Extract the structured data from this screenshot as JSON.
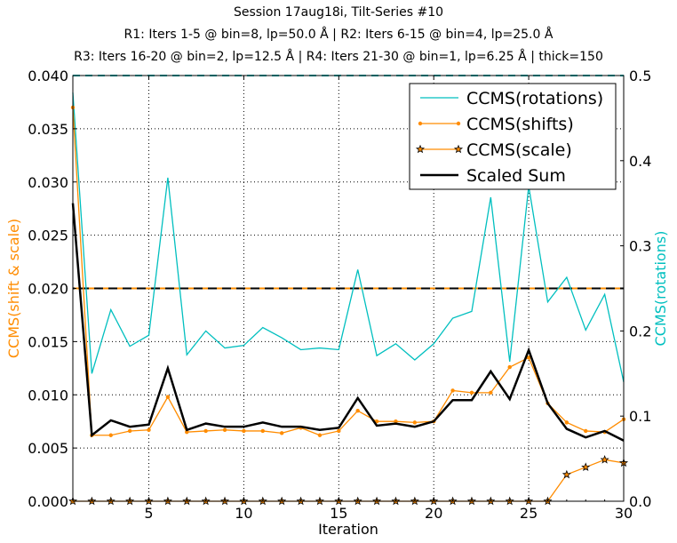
{
  "chart_data": {
    "type": "line",
    "title_lines": [
      "Session 17aug18i, Tilt-Series #10",
      "R1: Iters 1-5 @ bin=8, lp=50.0 Å | R2: Iters 6-15 @ bin=4, lp=25.0 Å",
      "R3: Iters 16-20 @ bin=2, lp=12.5 Å | R4: Iters 21-30 @ bin=1, lp=6.25 Å | thick=150"
    ],
    "xlabel": "Iteration",
    "ylabel_left": "CCMS(shift & scale)",
    "ylabel_right": "CCMS(rotations)",
    "xlim": [
      1,
      30
    ],
    "ylim_left": [
      0,
      0.04
    ],
    "ylim_right": [
      0,
      0.5
    ],
    "x_ticks": [
      "5",
      "10",
      "15",
      "20",
      "25",
      "30"
    ],
    "y_ticks_left": [
      "0.000",
      "0.005",
      "0.010",
      "0.015",
      "0.020",
      "0.025",
      "0.030",
      "0.035",
      "0.040"
    ],
    "y_ticks_right": [
      "0.0",
      "0.1",
      "0.2",
      "0.3",
      "0.4",
      "0.5"
    ],
    "grid": true,
    "legend_position": "top-right",
    "x": [
      1,
      2,
      3,
      4,
      5,
      6,
      7,
      8,
      9,
      10,
      11,
      12,
      13,
      14,
      15,
      16,
      17,
      18,
      19,
      20,
      21,
      22,
      23,
      24,
      25,
      26,
      27,
      28,
      29,
      30
    ],
    "series": [
      {
        "name": "CCMS(rotations)",
        "axis": "right",
        "color": "#00bfbf",
        "marker": "none",
        "values": [
          0.48,
          0.15,
          0.225,
          0.182,
          0.195,
          0.38,
          0.172,
          0.2,
          0.18,
          0.183,
          0.204,
          0.192,
          0.178,
          0.18,
          0.178,
          0.272,
          0.171,
          0.185,
          0.166,
          0.185,
          0.215,
          0.223,
          0.357,
          0.164,
          0.37,
          0.234,
          0.263,
          0.201,
          0.243,
          0.14
        ]
      },
      {
        "name": "CCMS(shifts)",
        "axis": "left",
        "color": "#ff8c00",
        "marker": "dot",
        "values": [
          0.037,
          0.0062,
          0.0062,
          0.0066,
          0.0067,
          0.0098,
          0.0065,
          0.0066,
          0.0067,
          0.0066,
          0.0066,
          0.0064,
          0.0069,
          0.0062,
          0.0066,
          0.0085,
          0.0075,
          0.0075,
          0.0074,
          0.0075,
          0.0104,
          0.0102,
          0.0102,
          0.0126,
          0.0135,
          0.0092,
          0.0074,
          0.0066,
          0.0065,
          0.0077
        ]
      },
      {
        "name": "CCMS(scale)",
        "axis": "left",
        "color": "#ff8c00",
        "marker": "star",
        "values": [
          0,
          0,
          0,
          0,
          0,
          0,
          0,
          0,
          0,
          0,
          0,
          0,
          0,
          0,
          0,
          0,
          0,
          0,
          0,
          0,
          0,
          0,
          0,
          0,
          0,
          0,
          0.0025,
          0.0032,
          0.0039,
          0.0036
        ]
      },
      {
        "name": "Scaled Sum",
        "axis": "left",
        "color": "#000000",
        "marker": "none",
        "values": [
          0.028,
          0.0062,
          0.0076,
          0.007,
          0.0072,
          0.0125,
          0.0067,
          0.0073,
          0.007,
          0.007,
          0.0074,
          0.007,
          0.007,
          0.0067,
          0.0069,
          0.0097,
          0.0071,
          0.0073,
          0.007,
          0.0075,
          0.0095,
          0.0095,
          0.0122,
          0.0096,
          0.0142,
          0.0092,
          0.0068,
          0.006,
          0.0066,
          0.0057
        ]
      }
    ],
    "reference_lines": [
      {
        "axis": "left",
        "value": 0.02,
        "color": "#ff8c00",
        "style": "dashed"
      },
      {
        "axis": "left",
        "value": 0.02,
        "color": "#000000",
        "style": "dashed"
      },
      {
        "axis": "right",
        "value": 0.5,
        "color": "#00bfbf",
        "style": "dashed"
      }
    ]
  }
}
